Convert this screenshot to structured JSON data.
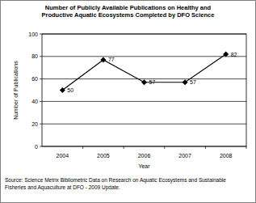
{
  "chart_data": {
    "type": "line",
    "title": "Number of Publicly Available Publications on Healthy and Productive Aquatic Ecosystems Completed by DFO Science",
    "x_label": "Year",
    "y_label": "Number of Publications",
    "source": "Source: Science Metrix Bibliometric Data on Research on Aquatic Ecosystems and Sustainable Fisheries and Aquaculture at DFO - 2009 Update.",
    "categories": [
      "2004",
      "2005",
      "2006",
      "2007",
      "2008"
    ],
    "values": [
      50,
      77,
      57,
      57,
      82
    ],
    "color": "#000000",
    "marker": "diamond",
    "data_labels": true,
    "ylim": [
      0,
      100
    ],
    "yticks": [
      0,
      20,
      40,
      60,
      80,
      100
    ],
    "grid": true
  }
}
